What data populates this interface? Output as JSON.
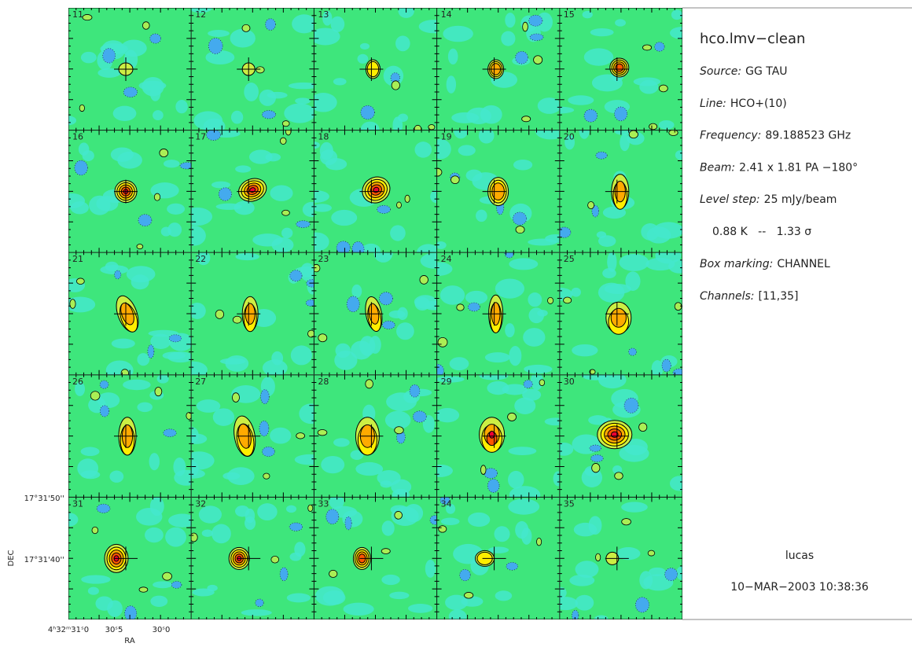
{
  "header": {
    "title": "hco.lmv−clean"
  },
  "info": [
    {
      "label": "Source:",
      "value": "GG TAU"
    },
    {
      "label": "Line:",
      "value": "HCO+(10)"
    },
    {
      "label": "Frequency:",
      "value": "89.188523 GHz"
    },
    {
      "label": "Beam:",
      "value": "2.41 x 1.81 PA −180°"
    },
    {
      "label": "Level step:",
      "value": "25 mJy/beam"
    }
  ],
  "level_note": "0.88 K   --   1.33 σ",
  "info2": [
    {
      "label": "Box marking:",
      "value": "CHANNEL"
    },
    {
      "label": "Channels:",
      "value": "[11,35]"
    }
  ],
  "footer": {
    "user": "lucas",
    "date": "10−MAR−2003 10:38:36"
  },
  "panels": [
    "11",
    "12",
    "13",
    "14",
    "15",
    "16",
    "17",
    "18",
    "19",
    "20",
    "21",
    "22",
    "23",
    "24",
    "25",
    "26",
    "27",
    "28",
    "29",
    "30",
    "31",
    "32",
    "33",
    "34",
    "35"
  ],
  "axes": {
    "dec_ticks": [
      "17°31'50''",
      "17°31'40''"
    ],
    "dec_label": "DEC",
    "ra_ticks": [
      "4ʰ32ᵐ31ˢ0",
      "30ˢ5",
      "30ˢ0"
    ],
    "ra_label": "RA"
  }
}
